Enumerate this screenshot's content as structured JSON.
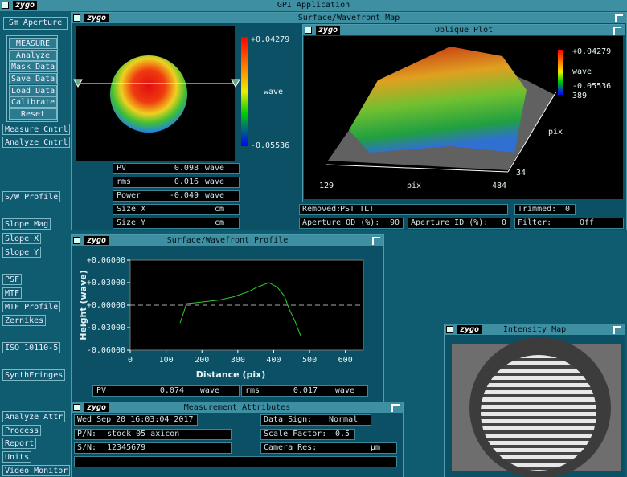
{
  "app_title": "GPI Application",
  "logo": "zygo",
  "sidebar": {
    "aperture": "Sm Aperture",
    "measure_group": [
      "MEASURE",
      "Analyze",
      "Mask Data",
      "Save Data",
      "Load Data",
      "Calibrate",
      "Reset"
    ],
    "buttons": [
      "Measure Cntrl",
      "Analyze Cntrl",
      "S/W Profile",
      "Slope Mag",
      "Slope X",
      "Slope Y",
      "PSF",
      "MTF",
      "MTF Profile",
      "Zernikes",
      "ISO 10110-5",
      "SynthFringes",
      "Analyze Attr",
      "Process",
      "Report",
      "Units",
      "Video Monitor"
    ]
  },
  "surface_map": {
    "title": "Surface/Wavefront Map",
    "colorbar": {
      "max": "+0.04279",
      "unit": "wave",
      "min": "-0.05536"
    },
    "stats": [
      {
        "label": "PV",
        "value": "0.098",
        "unit": "wave"
      },
      {
        "label": "rms",
        "value": "0.016",
        "unit": "wave"
      },
      {
        "label": "Power",
        "value": "-0.049",
        "unit": "wave"
      },
      {
        "label": "Size X",
        "unit": "cm"
      },
      {
        "label": "Size Y",
        "unit": "cm"
      }
    ]
  },
  "oblique_plot": {
    "title": "Oblique Plot",
    "colorbar": {
      "max": "+0.04279",
      "unit": "wave",
      "min": "-0.05536",
      "y_max": "389"
    },
    "axes": {
      "y_label": "pix",
      "y_min": "34",
      "x_min": "129",
      "x_label": "pix",
      "x_max": "484"
    }
  },
  "analysis": {
    "removed": {
      "label": "Removed:",
      "value": "PST TLT"
    },
    "trimmed": {
      "label": "Trimmed:",
      "value": "0"
    },
    "aperture_od": {
      "label": "Aperture OD (%):",
      "value": "90"
    },
    "aperture_id": {
      "label": "Aperture ID (%):",
      "value": "0"
    },
    "filter": {
      "label": "Filter:",
      "value": "Off"
    }
  },
  "profile": {
    "title": "Surface/Wavefront Profile",
    "chart": {
      "type": "line",
      "x_label": "Distance (pix)",
      "y_label": "Height (wave)",
      "color": "#33cc33",
      "x": [
        139,
        157,
        197,
        250,
        287,
        330,
        354,
        387,
        410,
        430,
        443,
        460,
        477
      ],
      "values": [
        -0.024,
        0.002,
        0.004,
        0.007,
        0.011,
        0.018,
        0.024,
        0.03,
        0.024,
        0.012,
        -0.005,
        -0.022,
        -0.043
      ],
      "xlim": [
        0,
        650
      ],
      "ylim": [
        -0.06,
        0.06
      ],
      "xticks": [
        0,
        100,
        200,
        300,
        400,
        500,
        600
      ],
      "yticks": [
        {
          "value": 0.06,
          "label": "+0.06000"
        },
        {
          "value": 0.03,
          "label": "+0.03000"
        },
        {
          "value": 0,
          "label": "+0.00000"
        },
        {
          "value": -0.03,
          "label": "-0.03000"
        },
        {
          "value": -0.06,
          "label": "-0.06000"
        }
      ]
    },
    "stats": [
      {
        "label": "PV",
        "value": "0.074",
        "unit": "wave"
      },
      {
        "label": "rms",
        "value": "0.017",
        "unit": "wave"
      }
    ]
  },
  "attributes": {
    "title": "Measurement Attributes",
    "date": "Wed Sep 20 16:03:04 2017",
    "pn": {
      "label": "P/N:",
      "value": "stock 05 axicon"
    },
    "sn": {
      "label": "S/N:",
      "value": "12345679"
    },
    "data_sign": {
      "label": "Data Sign:",
      "value": "Normal"
    },
    "scale_factor": {
      "label": "Scale Factor:",
      "value": "0.5"
    },
    "camera_res": {
      "label": "Camera Res:",
      "unit": "µm"
    }
  },
  "intensity_map": {
    "title": "Intensity Map"
  }
}
